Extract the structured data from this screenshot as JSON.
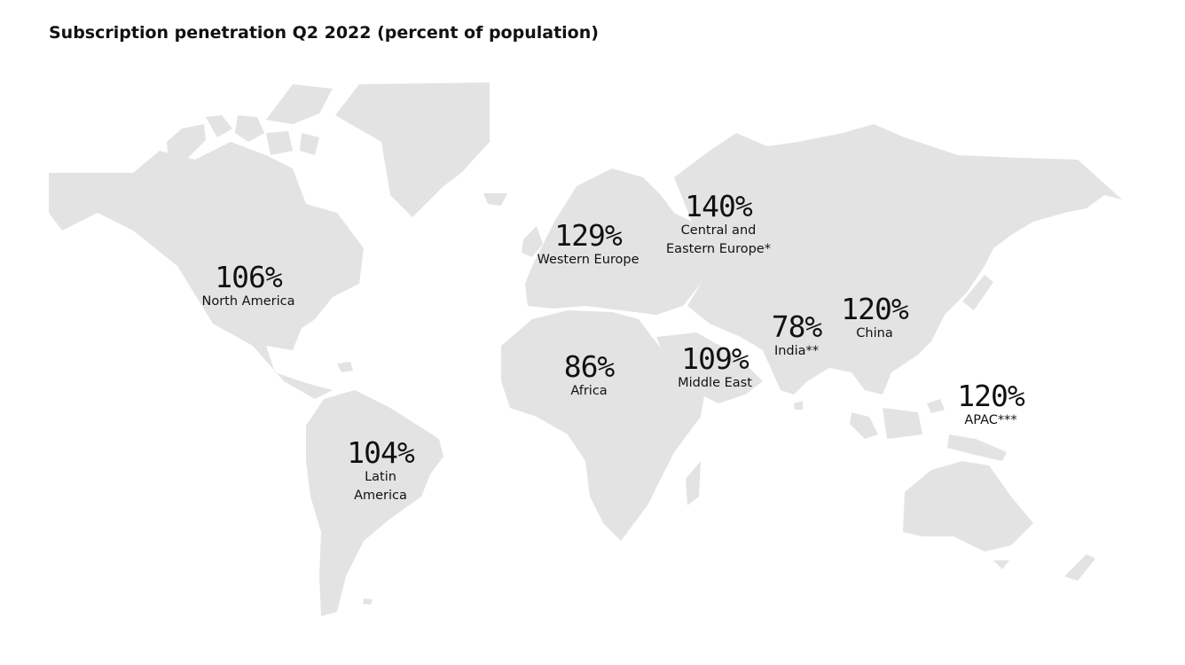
{
  "title": "Subscription penetration Q2 2022 (percent of population)",
  "colors": {
    "land": "#e3e3e3",
    "text": "#111111",
    "background": "#ffffff"
  },
  "regions": [
    {
      "id": "north-america",
      "value": "106%",
      "label": "North America"
    },
    {
      "id": "latin-america",
      "value": "104%",
      "label": "Latin America"
    },
    {
      "id": "western-europe",
      "value": "129%",
      "label": "Western Europe"
    },
    {
      "id": "central-eastern-europe",
      "value": "140%",
      "label": "Central and Eastern Europe*"
    },
    {
      "id": "africa",
      "value": "86%",
      "label": "Africa"
    },
    {
      "id": "middle-east",
      "value": "109%",
      "label": "Middle East"
    },
    {
      "id": "india",
      "value": "78%",
      "label": "India**"
    },
    {
      "id": "china",
      "value": "120%",
      "label": "China"
    },
    {
      "id": "apac",
      "value": "120%",
      "label": "APAC***"
    }
  ]
}
